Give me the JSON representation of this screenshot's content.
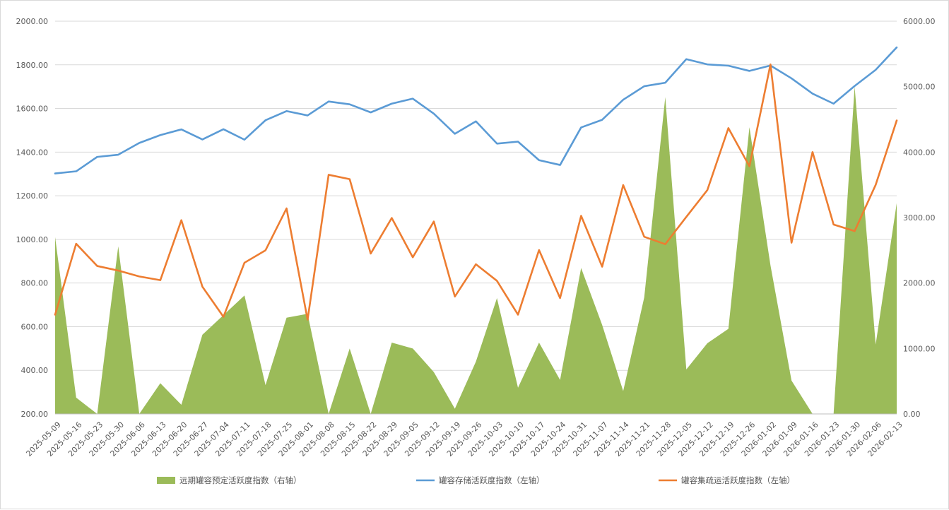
{
  "chart_data": {
    "type": "area+line",
    "title": "",
    "categories": [
      "2025-05-09",
      "2025-05-16",
      "2025-05-23",
      "2025-05-30",
      "2025-06-06",
      "2025-06-13",
      "2025-06-20",
      "2025-06-27",
      "2025-07-04",
      "2025-07-11",
      "2025-07-18",
      "2025-07-25",
      "2025-08-01",
      "2025-08-08",
      "2025-08-15",
      "2025-08-22",
      "2025-08-29",
      "2025-09-05",
      "2025-09-12",
      "2025-09-19",
      "2025-09-26",
      "2025-10-03",
      "2025-10-10",
      "2025-10-17",
      "2025-10-24",
      "2025-10-31",
      "2025-11-07",
      "2025-11-14",
      "2025-11-21",
      "2025-11-28",
      "2025-12-05",
      "2025-12-12",
      "2025-12-19",
      "2025-12-26",
      "2026-01-02",
      "2026-01-09",
      "2026-01-16",
      "2026-01-23",
      "2026-01-30",
      "2026-02-06",
      "2026-02-13"
    ],
    "left_axis": {
      "ylim": [
        200,
        2000
      ],
      "ticks": [
        "200.00",
        "400.00",
        "600.00",
        "800.00",
        "1000.00",
        "1200.00",
        "1400.00",
        "1600.00",
        "1800.00",
        "2000.00"
      ]
    },
    "right_axis": {
      "ylim": [
        0,
        6000
      ],
      "ticks": [
        "0.00",
        "1000.00",
        "2000.00",
        "3000.00",
        "4000.00",
        "5000.00",
        "6000.00"
      ]
    },
    "grid": true,
    "legend_position": "bottom",
    "series": [
      {
        "name": "远期罐容预定活跃度指数（右轴）",
        "kind": "area",
        "axis": "right",
        "color": "#9bbb59",
        "values": [
          2700,
          250,
          0,
          2560,
          0,
          470,
          140,
          1210,
          1510,
          1810,
          440,
          1470,
          1530,
          0,
          1000,
          0,
          1090,
          1000,
          640,
          80,
          800,
          1770,
          400,
          1090,
          520,
          2230,
          1360,
          350,
          1780,
          4840,
          680,
          1080,
          1300,
          4380,
          2270,
          510,
          0,
          0,
          5000,
          1060,
          3220
        ]
      },
      {
        "name": "罐容存储活跃度指数（左轴）",
        "kind": "line",
        "axis": "left",
        "color": "#5b9bd5",
        "values": [
          1302,
          1312,
          1378,
          1388,
          1442,
          1478,
          1504,
          1458,
          1505,
          1457,
          1546,
          1588,
          1568,
          1632,
          1619,
          1582,
          1622,
          1645,
          1576,
          1484,
          1541,
          1439,
          1448,
          1363,
          1341,
          1513,
          1548,
          1640,
          1702,
          1718,
          1826,
          1802,
          1796,
          1772,
          1797,
          1738,
          1668,
          1622,
          1703,
          1777,
          1880
        ]
      },
      {
        "name": "罐容集疏运活跃度指数（左轴）",
        "kind": "line",
        "axis": "left",
        "color": "#ed7d31",
        "values": [
          655,
          980,
          878,
          857,
          830,
          813,
          1088,
          783,
          645,
          893,
          950,
          1142,
          632,
          1296,
          1276,
          935,
          1098,
          918,
          1082,
          738,
          886,
          810,
          655,
          951,
          731,
          1108,
          875,
          1249,
          1012,
          978,
          1103,
          1226,
          1510,
          1335,
          1802,
          985,
          1400,
          1068,
          1038,
          1250,
          1545
        ]
      }
    ]
  }
}
